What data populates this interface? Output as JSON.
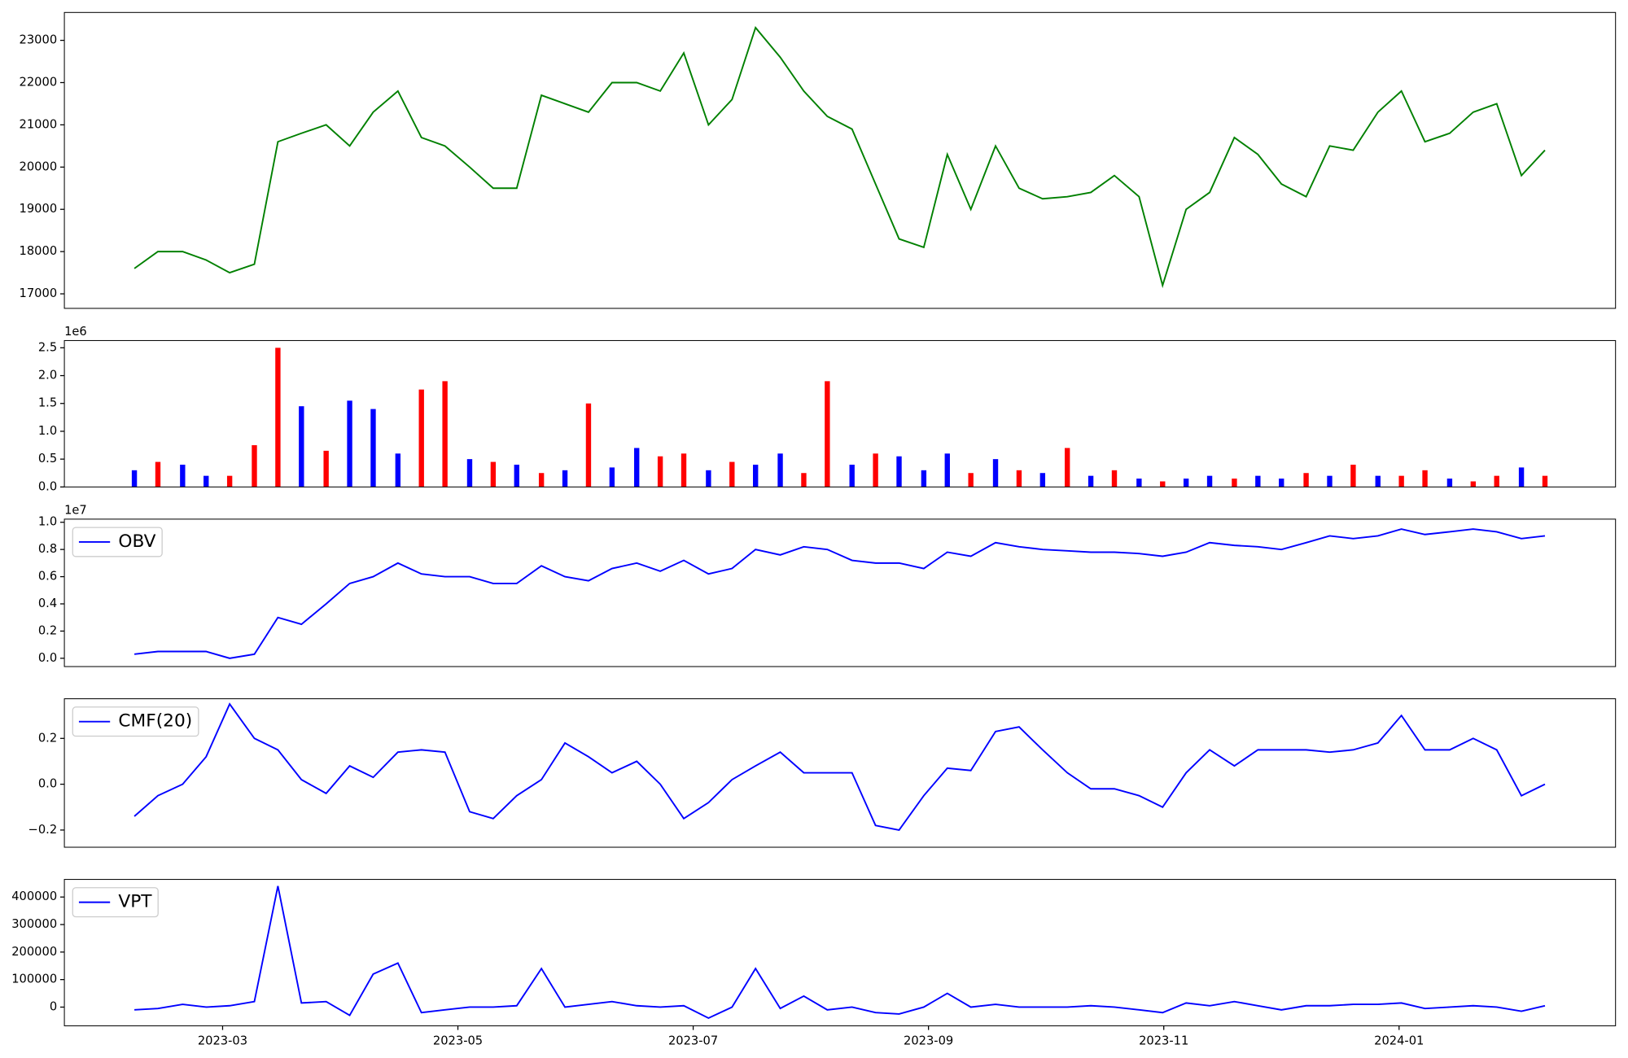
{
  "chart_data": [
    {
      "type": "line",
      "x": [
        1.25,
        1.45,
        1.66,
        1.86,
        2.06,
        2.27,
        2.47,
        2.67,
        2.88,
        3.08,
        3.28,
        3.49,
        3.69,
        3.89,
        4.1,
        4.3,
        4.5,
        4.71,
        4.91,
        5.11,
        5.31,
        5.52,
        5.72,
        5.92,
        6.13,
        6.33,
        6.53,
        6.74,
        6.94,
        7.14,
        7.35,
        7.55,
        7.75,
        7.96,
        8.16,
        8.36,
        8.57,
        8.77,
        8.97,
        9.18,
        9.38,
        9.58,
        9.79,
        9.99,
        10.19,
        10.39,
        10.6,
        10.8,
        11.0,
        11.21,
        11.41,
        11.61,
        11.82,
        12.02,
        12.22,
        12.43,
        12.63,
        12.83,
        13.04,
        13.24
      ],
      "series": [
        {
          "color": "green",
          "values": [
            17600,
            18000,
            18000,
            17800,
            17500,
            17700,
            20600,
            20800,
            21000,
            20500,
            21300,
            21800,
            20700,
            20500,
            20000,
            19500,
            19500,
            21700,
            21500,
            21300,
            22000,
            22000,
            21800,
            22700,
            21000,
            21600,
            23300,
            22600,
            21800,
            21200,
            20900,
            19600,
            18300,
            18100,
            20300,
            19000,
            20500,
            19500,
            19250,
            19300,
            19400,
            19800,
            19300,
            17200,
            19000,
            19400,
            20700,
            20300,
            19600,
            19300,
            20500,
            20400,
            21300,
            21800,
            20600,
            20800,
            21300,
            21500,
            19800,
            20400
          ]
        }
      ],
      "xlim": [
        0.655,
        13.84
      ],
      "ylim": [
        16656,
        23660
      ],
      "yticks": [
        17000,
        18000,
        19000,
        20000,
        21000,
        22000,
        23000
      ]
    },
    {
      "type": "bar",
      "x": [
        1.25,
        1.45,
        1.66,
        1.86,
        2.06,
        2.27,
        2.47,
        2.67,
        2.88,
        3.08,
        3.28,
        3.49,
        3.69,
        3.89,
        4.1,
        4.3,
        4.5,
        4.71,
        4.91,
        5.11,
        5.31,
        5.52,
        5.72,
        5.92,
        6.13,
        6.33,
        6.53,
        6.74,
        6.94,
        7.14,
        7.35,
        7.55,
        7.75,
        7.96,
        8.16,
        8.36,
        8.57,
        8.77,
        8.97,
        9.18,
        9.38,
        9.58,
        9.79,
        9.99,
        10.19,
        10.39,
        10.6,
        10.8,
        11.0,
        11.21,
        11.41,
        11.61,
        11.82,
        12.02,
        12.22,
        12.43,
        12.63,
        12.83,
        13.04,
        13.24
      ],
      "series": [
        {
          "color": "blue",
          "values": [
            0.3,
            null,
            0.4,
            0.2,
            null,
            null,
            null,
            1.45,
            null,
            1.55,
            1.4,
            0.6,
            null,
            null,
            0.5,
            null,
            0.4,
            null,
            0.3,
            null,
            0.35,
            0.7,
            null,
            null,
            0.3,
            null,
            0.4,
            0.6,
            null,
            null,
            0.4,
            null,
            0.55,
            0.3,
            0.6,
            null,
            0.5,
            null,
            0.25,
            null,
            0.2,
            null,
            0.15,
            null,
            0.15,
            0.2,
            null,
            0.2,
            0.15,
            null,
            0.2,
            null,
            0.2,
            null,
            null,
            0.15,
            null,
            null,
            0.35,
            null
          ]
        },
        {
          "color": "red",
          "values": [
            null,
            0.45,
            null,
            null,
            0.2,
            0.75,
            2.5,
            null,
            0.65,
            null,
            null,
            null,
            1.75,
            1.9,
            null,
            0.45,
            null,
            0.25,
            null,
            1.5,
            null,
            null,
            0.55,
            0.6,
            null,
            0.45,
            null,
            null,
            0.25,
            1.9,
            null,
            0.6,
            null,
            null,
            null,
            0.25,
            null,
            0.3,
            null,
            0.7,
            null,
            0.3,
            null,
            0.1,
            null,
            null,
            0.15,
            null,
            null,
            0.25,
            null,
            0.4,
            null,
            0.2,
            0.3,
            null,
            0.1,
            0.2,
            null,
            0.2
          ]
        }
      ],
      "xlim": [
        0.655,
        13.84
      ],
      "ylim": [
        0,
        2.63
      ],
      "offset_label": "1e6",
      "yticks": [
        {
          "value": 0,
          "label": "0.0"
        },
        {
          "value": 0.5,
          "label": "0.5"
        },
        {
          "value": 1,
          "label": "1.0"
        },
        {
          "value": 1.5,
          "label": "1.5"
        },
        {
          "value": 2,
          "label": "2.0"
        },
        {
          "value": 2.5,
          "label": "2.5"
        }
      ]
    },
    {
      "type": "line",
      "legend": "upper left",
      "x": [
        1.25,
        1.45,
        1.66,
        1.86,
        2.06,
        2.27,
        2.47,
        2.67,
        2.88,
        3.08,
        3.28,
        3.49,
        3.69,
        3.89,
        4.1,
        4.3,
        4.5,
        4.71,
        4.91,
        5.11,
        5.31,
        5.52,
        5.72,
        5.92,
        6.13,
        6.33,
        6.53,
        6.74,
        6.94,
        7.14,
        7.35,
        7.55,
        7.75,
        7.96,
        8.16,
        8.36,
        8.57,
        8.77,
        8.97,
        9.18,
        9.38,
        9.58,
        9.79,
        9.99,
        10.19,
        10.39,
        10.6,
        10.8,
        11.0,
        11.21,
        11.41,
        11.61,
        11.82,
        12.02,
        12.22,
        12.43,
        12.63,
        12.83,
        13.04,
        13.24
      ],
      "series": [
        {
          "name": "OBV",
          "color": "blue",
          "values": [
            0.03,
            0.05,
            0.05,
            0.05,
            0.0,
            0.03,
            0.3,
            0.25,
            0.4,
            0.55,
            0.6,
            0.7,
            0.62,
            0.6,
            0.6,
            0.55,
            0.55,
            0.68,
            0.6,
            0.57,
            0.66,
            0.7,
            0.64,
            0.72,
            0.62,
            0.66,
            0.8,
            0.76,
            0.82,
            0.8,
            0.72,
            0.7,
            0.7,
            0.66,
            0.78,
            0.75,
            0.85,
            0.82,
            0.8,
            0.79,
            0.78,
            0.78,
            0.77,
            0.75,
            0.78,
            0.85,
            0.83,
            0.82,
            0.8,
            0.85,
            0.9,
            0.88,
            0.9,
            0.95,
            0.91,
            0.93,
            0.95,
            0.93,
            0.88,
            0.9
          ]
        }
      ],
      "xlim": [
        0.655,
        13.84
      ],
      "ylim": [
        -0.061,
        1.023
      ],
      "offset_label": "1e7",
      "yticks": [
        {
          "value": 0,
          "label": "0.0"
        },
        {
          "value": 0.2,
          "label": "0.2"
        },
        {
          "value": 0.4,
          "label": "0.4"
        },
        {
          "value": 0.6,
          "label": "0.6"
        },
        {
          "value": 0.8,
          "label": "0.8"
        },
        {
          "value": 1,
          "label": "1.0"
        }
      ]
    },
    {
      "type": "line",
      "legend": "upper left",
      "x": [
        1.25,
        1.45,
        1.66,
        1.86,
        2.06,
        2.27,
        2.47,
        2.67,
        2.88,
        3.08,
        3.28,
        3.49,
        3.69,
        3.89,
        4.1,
        4.3,
        4.5,
        4.71,
        4.91,
        5.11,
        5.31,
        5.52,
        5.72,
        5.92,
        6.13,
        6.33,
        6.53,
        6.74,
        6.94,
        7.14,
        7.35,
        7.55,
        7.75,
        7.96,
        8.16,
        8.36,
        8.57,
        8.77,
        8.97,
        9.18,
        9.38,
        9.58,
        9.79,
        9.99,
        10.19,
        10.39,
        10.6,
        10.8,
        11.0,
        11.21,
        11.41,
        11.61,
        11.82,
        12.02,
        12.22,
        12.43,
        12.63,
        12.83,
        13.04,
        13.24
      ],
      "series": [
        {
          "name": "CMF(20)",
          "color": "blue",
          "values": [
            -0.14,
            -0.05,
            0.0,
            0.12,
            0.35,
            0.2,
            0.15,
            0.02,
            -0.04,
            0.08,
            0.03,
            0.14,
            0.15,
            0.14,
            -0.12,
            -0.15,
            -0.05,
            0.02,
            0.18,
            0.12,
            0.05,
            0.1,
            0.0,
            -0.15,
            -0.08,
            0.02,
            0.08,
            0.14,
            0.05,
            0.05,
            0.05,
            -0.18,
            -0.2,
            -0.05,
            0.07,
            0.06,
            0.23,
            0.25,
            0.15,
            0.05,
            -0.02,
            -0.02,
            -0.05,
            -0.1,
            0.05,
            0.15,
            0.08,
            0.15,
            0.15,
            0.15,
            0.14,
            0.15,
            0.18,
            0.3,
            0.15,
            0.15,
            0.2,
            0.15,
            -0.05,
            0.0
          ]
        }
      ],
      "xlim": [
        0.655,
        13.84
      ],
      "ylim": [
        -0.275,
        0.373
      ],
      "yticks": [
        {
          "value": -0.2,
          "label": "−0.2"
        },
        {
          "value": 0,
          "label": "0.0"
        },
        {
          "value": 0.2,
          "label": "0.2"
        }
      ]
    },
    {
      "type": "line",
      "legend": "upper left",
      "x": [
        1.25,
        1.45,
        1.66,
        1.86,
        2.06,
        2.27,
        2.47,
        2.67,
        2.88,
        3.08,
        3.28,
        3.49,
        3.69,
        3.89,
        4.1,
        4.3,
        4.5,
        4.71,
        4.91,
        5.11,
        5.31,
        5.52,
        5.72,
        5.92,
        6.13,
        6.33,
        6.53,
        6.74,
        6.94,
        7.14,
        7.35,
        7.55,
        7.75,
        7.96,
        8.16,
        8.36,
        8.57,
        8.77,
        8.97,
        9.18,
        9.38,
        9.58,
        9.79,
        9.99,
        10.19,
        10.39,
        10.6,
        10.8,
        11.0,
        11.21,
        11.41,
        11.61,
        11.82,
        12.02,
        12.22,
        12.43,
        12.63,
        12.83,
        13.04,
        13.24
      ],
      "series": [
        {
          "name": "VPT",
          "color": "blue",
          "values": [
            -10000,
            -5000,
            10000,
            0,
            5000,
            20000,
            440000,
            15000,
            20000,
            -30000,
            120000,
            160000,
            -20000,
            -10000,
            0,
            0,
            5000,
            140000,
            0,
            10000,
            20000,
            5000,
            0,
            5000,
            -40000,
            0,
            140000,
            -5000,
            40000,
            -10000,
            0,
            -20000,
            -25000,
            0,
            50000,
            0,
            10000,
            0,
            0,
            0,
            5000,
            0,
            -10000,
            -20000,
            15000,
            5000,
            20000,
            5000,
            -10000,
            5000,
            5000,
            10000,
            10000,
            15000,
            -5000,
            0,
            5000,
            0,
            -15000,
            5000
          ]
        }
      ],
      "xlim": [
        0.655,
        13.84
      ],
      "ylim": [
        -68000,
        464000
      ],
      "yticks": [
        0,
        100000,
        200000,
        300000,
        400000
      ],
      "xticks": [
        {
          "value": 2,
          "label": "2023-03"
        },
        {
          "value": 4,
          "label": "2023-05"
        },
        {
          "value": 6,
          "label": "2023-07"
        },
        {
          "value": 8,
          "label": "2023-09"
        },
        {
          "value": 10,
          "label": "2023-11"
        },
        {
          "value": 12,
          "label": "2024-01"
        }
      ]
    }
  ]
}
